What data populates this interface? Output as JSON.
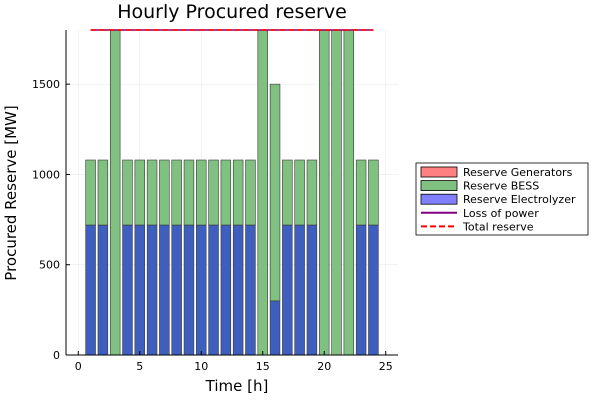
{
  "chart_data": {
    "type": "bar",
    "title": "Hourly Procured reserve",
    "xlabel": "Time [h]",
    "ylabel": "Procured Reserve [MW]",
    "xlim": [
      -1,
      26
    ],
    "ylim": [
      0,
      1800
    ],
    "xticks": [
      0,
      5,
      10,
      15,
      20,
      25
    ],
    "yticks": [
      0,
      500,
      1000,
      1500
    ],
    "grid": true,
    "stacked": true,
    "legend_position": "outside-right",
    "x": [
      1,
      2,
      3,
      4,
      5,
      6,
      7,
      8,
      9,
      10,
      11,
      12,
      13,
      14,
      15,
      16,
      17,
      18,
      19,
      20,
      21,
      22,
      23,
      24
    ],
    "series": [
      {
        "name": "Reserve Generators",
        "kind": "bar",
        "color": "#ff8080",
        "values": [
          0,
          0,
          0,
          0,
          0,
          0,
          0,
          0,
          0,
          0,
          0,
          0,
          0,
          0,
          0,
          0,
          0,
          0,
          0,
          0,
          0,
          0,
          0,
          0
        ]
      },
      {
        "name": "Reserve BESS",
        "kind": "bar",
        "color": "#80c080",
        "values": [
          360,
          360,
          1800,
          360,
          360,
          360,
          360,
          360,
          360,
          360,
          360,
          360,
          360,
          360,
          1800,
          1200,
          360,
          360,
          360,
          1800,
          1800,
          1800,
          360,
          360
        ]
      },
      {
        "name": "Reserve Electrolyzer",
        "kind": "bar",
        "color": "#8080ff",
        "values": [
          720,
          720,
          0,
          720,
          720,
          720,
          720,
          720,
          720,
          720,
          720,
          720,
          720,
          720,
          0,
          300,
          720,
          720,
          720,
          0,
          0,
          0,
          720,
          720
        ]
      },
      {
        "name": "Loss of power",
        "kind": "line",
        "color": "#800080",
        "x": [
          1,
          24
        ],
        "values": [
          1800,
          1800
        ]
      },
      {
        "name": "Total reserve",
        "kind": "line-dashed",
        "color": "#ff0000",
        "x": [
          1,
          24
        ],
        "values": [
          1800,
          1800
        ]
      }
    ]
  }
}
